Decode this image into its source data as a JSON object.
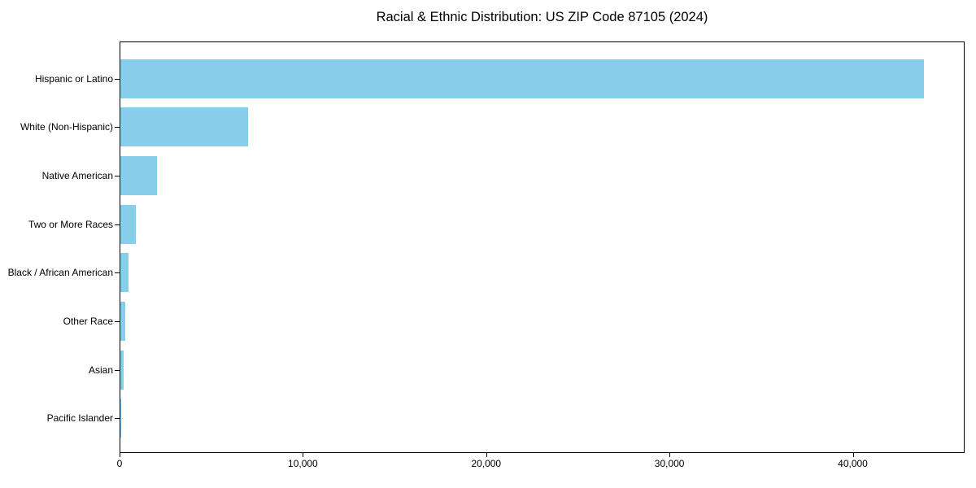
{
  "chart_data": {
    "type": "bar",
    "orientation": "horizontal",
    "title": "Racial & Ethnic Distribution: US ZIP Code 87105 (2024)",
    "categories": [
      "Hispanic or Latino",
      "White (Non-Hispanic)",
      "Native American",
      "Two or More Races",
      "Black / African American",
      "Other Race",
      "Asian",
      "Pacific Islander"
    ],
    "values": [
      43900,
      7000,
      2000,
      850,
      450,
      250,
      200,
      30
    ],
    "xlabel": "",
    "ylabel": "",
    "xlim": [
      0,
      46100
    ],
    "xticks": [
      0,
      10000,
      20000,
      30000,
      40000
    ],
    "xtick_labels": [
      "0",
      "10,000",
      "20,000",
      "30,000",
      "40,000"
    ],
    "bar_color": "#87CEEB",
    "spine_color": "#000000",
    "text_color": "#000000",
    "background_color": "#ffffff",
    "grid": false,
    "legend": "none"
  }
}
